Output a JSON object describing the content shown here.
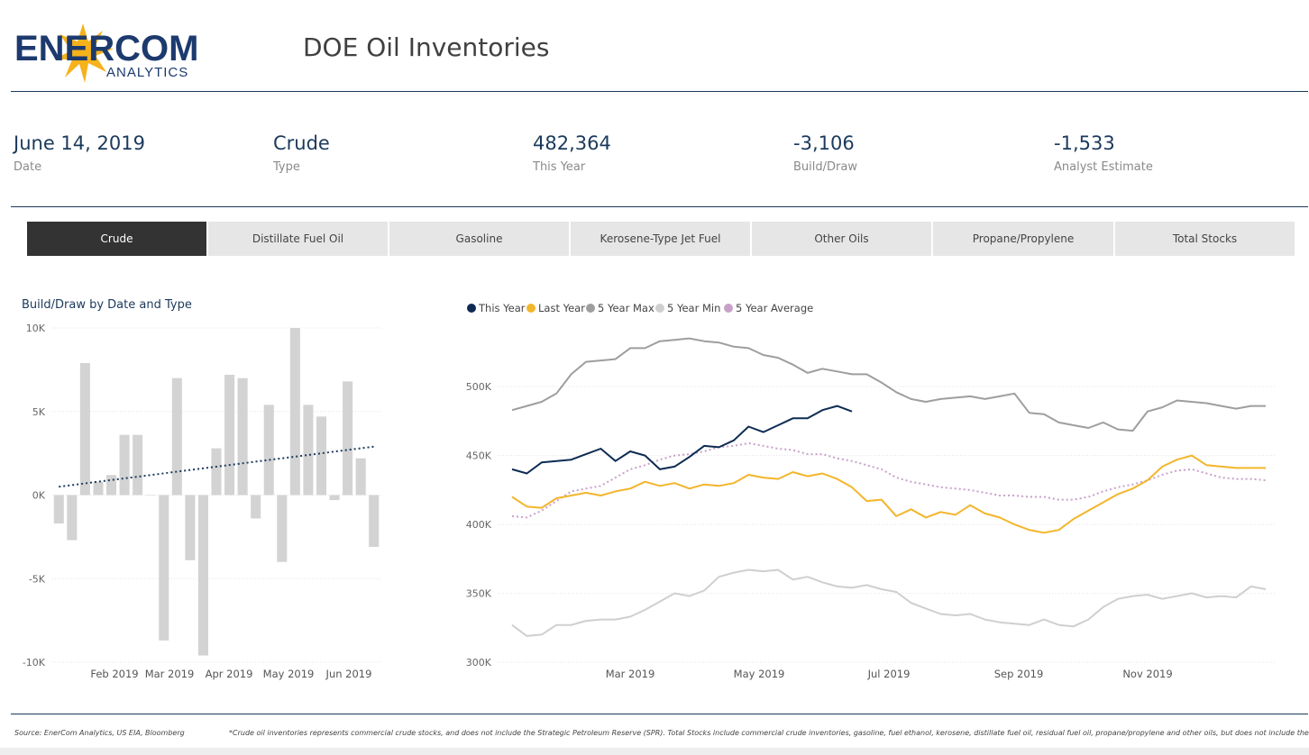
{
  "header": {
    "logo_word": "ENERCOM",
    "logo_sub": "ANALYTICS",
    "title": "DOE Oil Inventories"
  },
  "kpis": [
    {
      "value": "June 14, 2019",
      "label": "Date"
    },
    {
      "value": "Crude",
      "label": "Type"
    },
    {
      "value": "482,364",
      "label": "This Year"
    },
    {
      "value": "-3,106",
      "label": "Build/Draw"
    },
    {
      "value": "-1,533",
      "label": "Analyst Estimate"
    }
  ],
  "tabs": [
    {
      "label": "Crude",
      "active": true
    },
    {
      "label": "Distillate Fuel Oil",
      "active": false
    },
    {
      "label": "Gasoline",
      "active": false
    },
    {
      "label": "Kerosene-Type Jet Fuel",
      "active": false
    },
    {
      "label": "Other Oils",
      "active": false
    },
    {
      "label": "Propane/Propylene",
      "active": false
    },
    {
      "label": "Total Stocks",
      "active": false
    }
  ],
  "footer": {
    "source": "Source: EnerCom Analytics, US EIA, Bloomberg",
    "note": "*Crude oil inventories represents commercial crude stocks, and does not include the Strategic Petroleum Reserve (SPR).  Total Stocks include commercial crude inventories, gasoline, fuel ethanol, kerosene, distillate fuel oil, residual fuel oil, propane/propylene and other oils, but does not include the SPR."
  },
  "colors": {
    "navy": "#1b3a5c",
    "bar": "#d3d3d3",
    "this_year": "#0d2b52",
    "last_year": "#f3b52b",
    "max": "#9e9e9e",
    "min": "#cfcfcf",
    "avg": "#c9a0c9"
  },
  "chart_data": [
    {
      "type": "bar",
      "title": "Build/Draw by Date and Type",
      "ylim": [
        -10000,
        10000
      ],
      "yticks": [
        {
          "v": 10000,
          "label": "10K"
        },
        {
          "v": 5000,
          "label": "5K"
        },
        {
          "v": 0,
          "label": "0K"
        },
        {
          "v": -5000,
          "label": "-5K"
        },
        {
          "v": -10000,
          "label": "-10K"
        }
      ],
      "xticks": [
        "Feb 2019",
        "Mar 2019",
        "Apr 2019",
        "May 2019",
        "Jun 2019"
      ],
      "values": [
        -1700,
        -2700,
        7900,
        800,
        1200,
        3600,
        3600,
        0,
        -8700,
        7000,
        -3900,
        -9600,
        2800,
        7200,
        7000,
        -1400,
        5400,
        -4000,
        10000,
        5400,
        4700,
        -300,
        6800,
        2200,
        -3100
      ],
      "trend": [
        500,
        2900
      ],
      "grid": true
    },
    {
      "type": "line",
      "ylim": [
        300000,
        540000
      ],
      "yticks": [
        {
          "v": 300000,
          "label": "300K"
        },
        {
          "v": 350000,
          "label": "350K"
        },
        {
          "v": 400000,
          "label": "400K"
        },
        {
          "v": 450000,
          "label": "450K"
        },
        {
          "v": 500000,
          "label": "500K"
        }
      ],
      "xticks": [
        "Mar 2019",
        "May 2019",
        "Jul 2019",
        "Sep 2019",
        "Nov 2019"
      ],
      "grid": true,
      "legend_position": "top-left",
      "series": [
        {
          "name": "This Year",
          "color_key": "this_year",
          "style": "solid",
          "values": [
            440000,
            437000,
            445000,
            446000,
            447000,
            451000,
            455000,
            446000,
            453000,
            450000,
            440000,
            442000,
            449000,
            457000,
            456000,
            461000,
            471000,
            467000,
            472000,
            477000,
            477000,
            483000,
            486000,
            482000
          ]
        },
        {
          "name": "Last Year",
          "color_key": "last_year",
          "style": "solid",
          "values": [
            420000,
            413000,
            412000,
            419000,
            421000,
            423000,
            421000,
            424000,
            426000,
            431000,
            428000,
            430000,
            426000,
            429000,
            428000,
            430000,
            436000,
            434000,
            433000,
            438000,
            435000,
            437000,
            433000,
            427000,
            417000,
            418000,
            406000,
            411000,
            405000,
            409000,
            407000,
            414000,
            408000,
            405000,
            400000,
            396000,
            394000,
            396000,
            404000,
            410000,
            416000,
            422000,
            426000,
            432000,
            442000,
            447000,
            450000,
            443000,
            442000,
            441000,
            441000,
            441000
          ]
        },
        {
          "name": "5 Year Max",
          "color_key": "max",
          "style": "solid",
          "values": [
            483000,
            486000,
            489000,
            495000,
            509000,
            518000,
            519000,
            520000,
            528000,
            528000,
            533000,
            534000,
            535000,
            533000,
            532000,
            529000,
            528000,
            523000,
            521000,
            516000,
            510000,
            513000,
            511000,
            509000,
            509000,
            503000,
            496000,
            491000,
            489000,
            491000,
            492000,
            493000,
            491000,
            493000,
            495000,
            481000,
            480000,
            474000,
            472000,
            470000,
            474000,
            469000,
            468000,
            482000,
            485000,
            490000,
            489000,
            488000,
            486000,
            484000,
            486000,
            486000
          ]
        },
        {
          "name": "5 Year Min",
          "color_key": "min",
          "style": "solid",
          "values": [
            327000,
            319000,
            320000,
            327000,
            327000,
            330000,
            331000,
            331000,
            333000,
            338000,
            344000,
            350000,
            348000,
            352000,
            362000,
            365000,
            367000,
            366000,
            367000,
            360000,
            362000,
            358000,
            355000,
            354000,
            356000,
            353000,
            351000,
            343000,
            339000,
            335000,
            334000,
            335000,
            331000,
            329000,
            328000,
            327000,
            331000,
            327000,
            326000,
            331000,
            340000,
            346000,
            348000,
            349000,
            346000,
            348000,
            350000,
            347000,
            348000,
            347000,
            355000,
            353000
          ]
        },
        {
          "name": "5 Year Average",
          "color_key": "avg",
          "style": "dotted",
          "values": [
            406000,
            405000,
            410000,
            417000,
            424000,
            426000,
            428000,
            434000,
            440000,
            443000,
            447000,
            450000,
            451000,
            453000,
            456000,
            457000,
            459000,
            457000,
            455000,
            454000,
            451000,
            451000,
            448000,
            446000,
            443000,
            440000,
            434000,
            431000,
            429000,
            427000,
            426000,
            425000,
            423000,
            421000,
            421000,
            420000,
            420000,
            418000,
            418000,
            420000,
            424000,
            427000,
            429000,
            432000,
            436000,
            439000,
            440000,
            437000,
            434000,
            433000,
            433000,
            432000
          ]
        }
      ]
    }
  ]
}
